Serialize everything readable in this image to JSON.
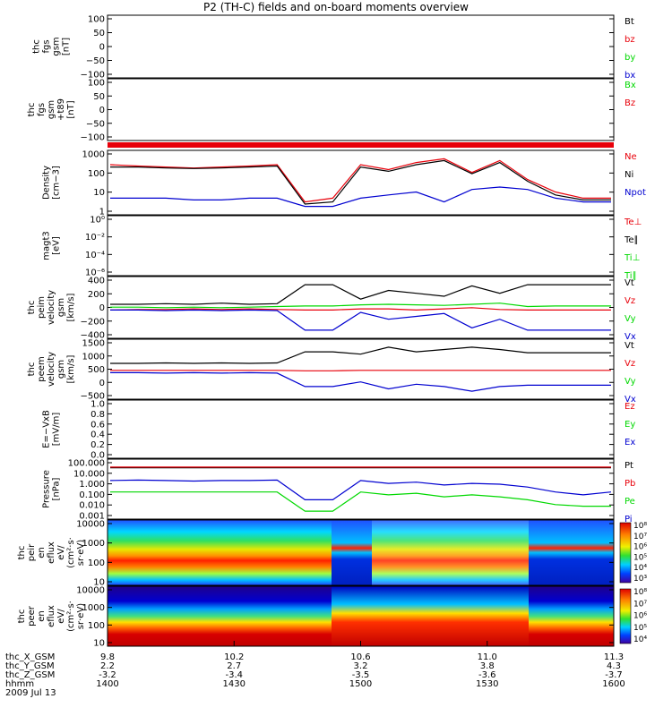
{
  "title": "P2 (TH-C) fields and on-board moments overview",
  "colors": {
    "black": "#000000",
    "red": "#e8000a",
    "green": "#00d800",
    "blue": "#0000d0"
  },
  "chart_data": {
    "type": "line",
    "title": "P2 (TH-C) fields and on-board moments overview",
    "x_axis": {
      "ticks": [
        {
          "time": "1400",
          "X_GSM": "9.8",
          "Y_GSM": "2.2",
          "Z_GSM": "-3.2"
        },
        {
          "time": "1430",
          "X_GSM": "10.2",
          "Y_GSM": "2.7",
          "Z_GSM": "-3.4"
        },
        {
          "time": "1500",
          "X_GSM": "10.6",
          "Y_GSM": "3.2",
          "Z_GSM": "-3.5"
        },
        {
          "time": "1530",
          "X_GSM": "11.0",
          "Y_GSM": "3.8",
          "Z_GSM": "-3.6"
        },
        {
          "time": "1600",
          "X_GSM": "11.3",
          "Y_GSM": "4.3",
          "Z_GSM": "-3.7"
        }
      ],
      "row_labels": [
        "thc_X_GSM",
        "thc_Y_GSM",
        "thc_Z_GSM",
        "hhmm",
        "2009 Jul 13"
      ]
    },
    "panels": [
      {
        "id": "fgs",
        "ylabel": [
          "thc",
          "fgs",
          "gsm",
          "[nT]"
        ],
        "ticks": [
          "100",
          "50",
          "0",
          "−50",
          "−100"
        ],
        "legend": [
          {
            "name": "Bt",
            "color": "black"
          },
          {
            "name": "bz",
            "color": "red"
          },
          {
            "name": "by",
            "color": "green"
          },
          {
            "name": "bx",
            "color": "blue"
          }
        ]
      },
      {
        "id": "fgs-dsl",
        "ylabel": [
          "thc",
          "fgs",
          "gsm",
          "+t89",
          "[nT]"
        ],
        "ticks": [
          "100",
          "50",
          "0",
          "−50",
          "−100"
        ],
        "legend": [
          {
            "name": "Bx",
            "color": "green"
          },
          {
            "name": "Bz",
            "color": "red"
          }
        ]
      },
      {
        "id": "density",
        "ylabel": [
          "Density",
          "[cm−3]"
        ],
        "ticks": [
          "1000",
          "100",
          "10",
          "1"
        ],
        "log": true,
        "legend": [
          {
            "name": "Ne",
            "color": "red"
          },
          {
            "name": "Ni",
            "color": "black"
          },
          {
            "name": "Npot",
            "color": "blue"
          }
        ],
        "series": [
          {
            "name": "Ne",
            "color": "red",
            "values": [
              55,
              52,
              50,
              48,
              50,
              52,
              55,
              12,
              14,
              55,
              45,
              60,
              70,
              40,
              65,
              30,
              18,
              14,
              14
            ]
          },
          {
            "name": "Ni",
            "color": "black",
            "values": [
              50,
              50,
              48,
              47,
              48,
              50,
              52,
              11,
              12,
              50,
              42,
              55,
              65,
              38,
              60,
              28,
              16,
              13,
              13
            ]
          },
          {
            "name": "Npot",
            "color": "blue",
            "values": [
              14,
              14,
              14,
              13,
              13,
              14,
              14,
              10,
              10,
              14,
              16,
              18,
              12,
              20,
              22,
              20,
              14,
              12,
              12
            ]
          }
        ]
      },
      {
        "id": "temperature",
        "ylabel": [
          "magt3",
          "[eV]"
        ],
        "ticks": [
          "10⁰",
          "10⁻²",
          "10⁻⁴",
          "10⁻⁶"
        ],
        "legend": [
          {
            "name": "Te⊥",
            "color": "red"
          },
          {
            "name": "Te∥",
            "color": "black"
          },
          {
            "name": "Ti⊥",
            "color": "green"
          },
          {
            "name": "Ti∥",
            "color": "green"
          }
        ]
      },
      {
        "id": "peim-velocity",
        "ylabel": [
          "thc",
          "peim",
          "velocity",
          "gsm",
          "[km/s]"
        ],
        "ticks": [
          "400",
          "200",
          "0",
          "−200",
          "−400"
        ],
        "legend": [
          {
            "name": "Vt",
            "color": "black"
          },
          {
            "name": "Vz",
            "color": "red"
          },
          {
            "name": "Vy",
            "color": "green"
          },
          {
            "name": "Vx",
            "color": "blue"
          }
        ],
        "series": [
          {
            "name": "Vt",
            "color": "black",
            "values": [
              60,
              60,
              70,
              60,
              80,
              60,
              70,
              400,
              400,
              150,
              300,
              250,
              200,
              380,
              250,
              400,
              400,
              400,
              400
            ]
          },
          {
            "name": "Vz",
            "color": "red",
            "values": [
              -40,
              -30,
              -30,
              -20,
              -30,
              -20,
              -30,
              -40,
              -40,
              -20,
              -20,
              -40,
              -20,
              0,
              -30,
              -40,
              -40,
              -40,
              -40
            ]
          },
          {
            "name": "Vy",
            "color": "green",
            "values": [
              10,
              10,
              0,
              10,
              0,
              10,
              20,
              30,
              30,
              50,
              60,
              50,
              40,
              60,
              80,
              20,
              30,
              30,
              30
            ]
          },
          {
            "name": "Vx",
            "color": "blue",
            "values": [
              -40,
              -40,
              -50,
              -40,
              -50,
              -40,
              -50,
              -390,
              -390,
              -80,
              -200,
              -150,
              -100,
              -350,
              -200,
              -390,
              -390,
              -390,
              -390
            ]
          }
        ]
      },
      {
        "id": "peem-velocity",
        "ylabel": [
          "thc",
          "peem",
          "velocity",
          "gsm",
          "[km/s]"
        ],
        "ticks": [
          "1500",
          "1000",
          "500",
          "0",
          "−500"
        ],
        "legend": [
          {
            "name": "Vt",
            "color": "black"
          },
          {
            "name": "Vz",
            "color": "red"
          },
          {
            "name": "Vy",
            "color": "green"
          },
          {
            "name": "Vx",
            "color": "blue"
          }
        ],
        "series": [
          {
            "name": "Vt",
            "color": "black",
            "values": [
              150,
              150,
              160,
              150,
              160,
              150,
              160,
              400,
              400,
              350,
              500,
              400,
              450,
              500,
              450,
              380,
              380,
              380,
              380
            ]
          },
          {
            "name": "Vz",
            "color": "red",
            "values": [
              0,
              0,
              0,
              0,
              0,
              0,
              0,
              -10,
              -10,
              0,
              0,
              0,
              0,
              0,
              0,
              0,
              0,
              0,
              0
            ]
          },
          {
            "name": "Vx",
            "color": "blue",
            "values": [
              -50,
              -50,
              -60,
              -50,
              -60,
              -50,
              -60,
              -350,
              -350,
              -250,
              -400,
              -300,
              -350,
              -450,
              -350,
              -320,
              -320,
              -320,
              -320
            ]
          }
        ]
      },
      {
        "id": "efield",
        "ylabel": [
          "E=−VxB",
          "[mV/m]"
        ],
        "ticks": [
          "1.0",
          "0.8",
          "0.6",
          "0.4",
          "0.2",
          "0.0"
        ],
        "legend": [
          {
            "name": "Ez",
            "color": "red"
          },
          {
            "name": "Ey",
            "color": "green"
          },
          {
            "name": "Ex",
            "color": "blue"
          }
        ]
      },
      {
        "id": "pressure",
        "ylabel": [
          "Pressure",
          "[nPa]"
        ],
        "ticks": [
          "100.000",
          "10.000",
          "1.000",
          "0.100",
          "0.010",
          "0.001"
        ],
        "log": true,
        "legend": [
          {
            "name": "Pt",
            "color": "black"
          },
          {
            "name": "Pb",
            "color": "red"
          },
          {
            "name": "Pe",
            "color": "green"
          },
          {
            "name": "Pi",
            "color": "blue"
          }
        ],
        "series": [
          {
            "name": "Pt",
            "color": "black",
            "values": [
              9,
              9,
              9,
              9,
              9,
              9,
              9,
              9,
              9,
              9,
              9,
              9,
              9,
              9,
              9,
              9,
              9,
              9,
              9
            ]
          },
          {
            "name": "Pb",
            "color": "red",
            "values": [
              10,
              10,
              10,
              10,
              10,
              10,
              10,
              10,
              10,
              10,
              10,
              10,
              10,
              10,
              10,
              10,
              10,
              10,
              10
            ]
          },
          {
            "name": "Pi",
            "color": "blue",
            "values": [
              1.5,
              1.6,
              1.5,
              1.4,
              1.5,
              1.5,
              1.6,
              0.1,
              0.1,
              1.5,
              1.0,
              1.2,
              0.8,
              1.0,
              0.9,
              0.6,
              0.3,
              0.2,
              0.3
            ]
          },
          {
            "name": "Pe",
            "color": "green",
            "values": [
              0.3,
              0.3,
              0.3,
              0.3,
              0.3,
              0.3,
              0.3,
              0.02,
              0.02,
              0.3,
              0.2,
              0.25,
              0.15,
              0.2,
              0.15,
              0.1,
              0.05,
              0.04,
              0.04
            ]
          }
        ]
      },
      {
        "id": "peir-spec",
        "type": "heatmap",
        "ylabel": [
          "thc",
          "peir",
          "en",
          "eflux",
          "eV/",
          "(cm²·s·",
          "sr·eV)"
        ],
        "ticks": [
          "10000",
          "1000",
          "100",
          "10"
        ],
        "colorbar_ticks": [
          "10⁸",
          "10⁷",
          "10⁶",
          "10⁵",
          "10⁴",
          "10³"
        ]
      },
      {
        "id": "peer-spec",
        "type": "heatmap",
        "ylabel": [
          "thc",
          "peer",
          "en",
          "eflux",
          "eV/",
          "(cm²·s·",
          "sr·eV)"
        ],
        "ticks": [
          "10000",
          "1000",
          "100",
          "10"
        ],
        "colorbar_ticks": [
          "10⁸",
          "10⁷",
          "10⁶",
          "10⁵",
          "10⁴"
        ]
      }
    ]
  }
}
